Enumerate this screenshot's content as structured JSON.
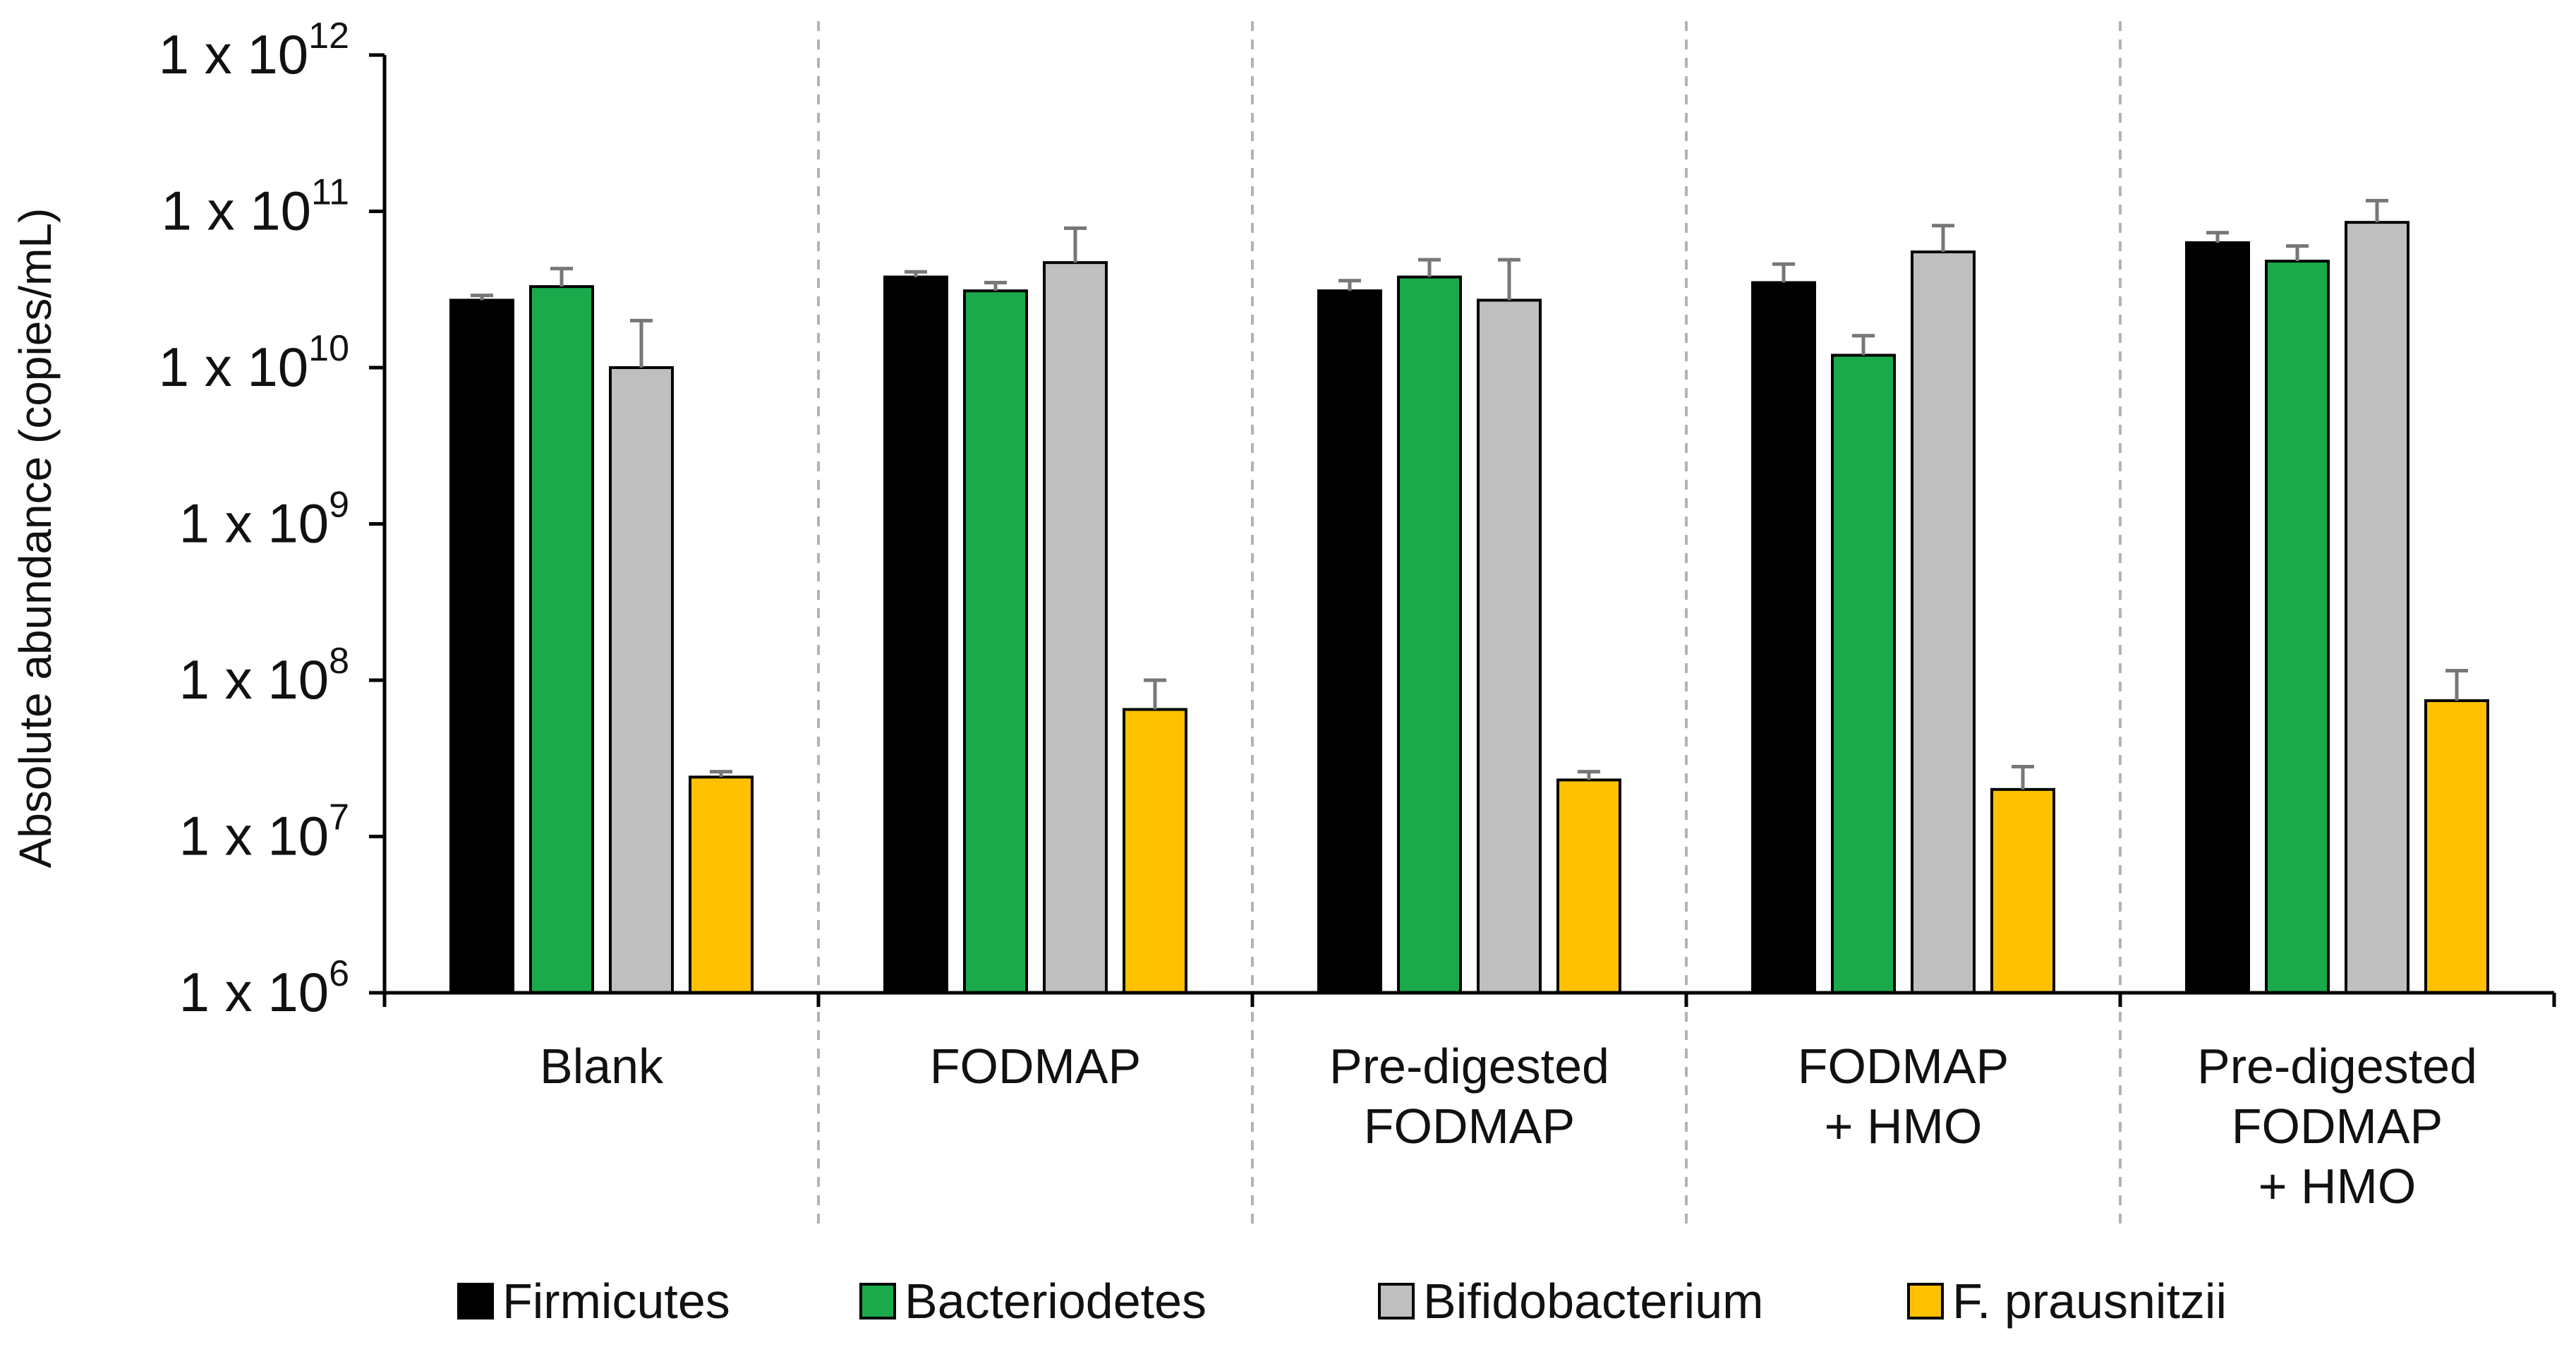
{
  "chart_data": {
    "type": "bar",
    "scale": "log",
    "title": "",
    "xlabel": "",
    "ylabel": "Absolute abundance (copies/mL)",
    "ylim": [
      1000000,
      1000000000000
    ],
    "yticks": [
      {
        "base": "1 x 10",
        "exp": "6",
        "value": 1000000
      },
      {
        "base": "1 x 10",
        "exp": "7",
        "value": 10000000
      },
      {
        "base": "1 x 10",
        "exp": "8",
        "value": 100000000
      },
      {
        "base": "1 x 10",
        "exp": "9",
        "value": 1000000000
      },
      {
        "base": "1 x 10",
        "exp": "10",
        "value": 10000000000
      },
      {
        "base": "1 x 10",
        "exp": "11",
        "value": 100000000000
      },
      {
        "base": "1 x 10",
        "exp": "12",
        "value": 1000000000000
      }
    ],
    "categories": [
      {
        "lines": [
          "Blank"
        ]
      },
      {
        "lines": [
          "FODMAP"
        ]
      },
      {
        "lines": [
          "Pre-digested",
          "FODMAP"
        ]
      },
      {
        "lines": [
          "FODMAP",
          "+ HMO"
        ]
      },
      {
        "lines": [
          "Pre-digested",
          "FODMAP",
          "+ HMO"
        ]
      }
    ],
    "series": [
      {
        "name": "Firmicutes",
        "color": "#000000",
        "values": [
          27000000000,
          38000000000,
          31000000000,
          35000000000,
          63000000000
        ],
        "errors": [
          29000000000,
          41000000000,
          36000000000,
          46000000000,
          73000000000
        ]
      },
      {
        "name": "Bacteriodetes",
        "color": "#1aaa4b",
        "values": [
          33000000000,
          31000000000,
          38000000000,
          12000000000,
          48000000000
        ],
        "errors": [
          43000000000,
          35000000000,
          49000000000,
          16000000000,
          60000000000
        ]
      },
      {
        "name": "Bifidobacterium",
        "color": "#bfbfbf",
        "values": [
          10000000000,
          47000000000,
          27000000000,
          55000000000,
          85000000000
        ],
        "errors": [
          20000000000,
          78000000000,
          49000000000,
          81000000000,
          117000000000
        ]
      },
      {
        "name": "F. prausnitzii",
        "color": "#ffc000",
        "values": [
          24000000,
          65000000,
          23000000,
          20000000,
          74000000
        ],
        "errors": [
          26000000,
          100000000,
          26000000,
          28000000,
          115000000
        ]
      }
    ],
    "grid": false,
    "legend_position": "bottom"
  }
}
